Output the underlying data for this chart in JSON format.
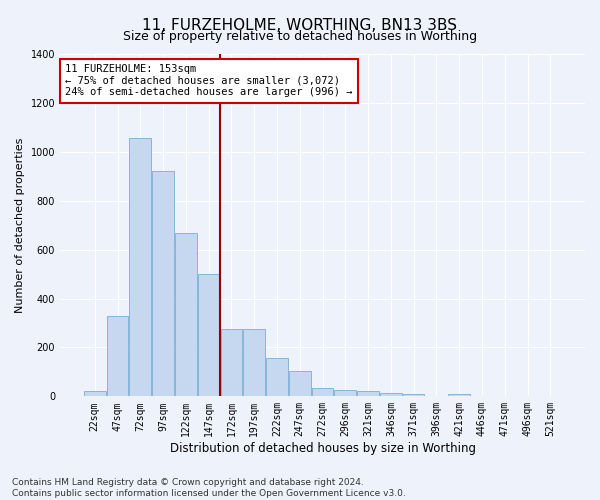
{
  "title": "11, FURZEHOLME, WORTHING, BN13 3BS",
  "subtitle": "Size of property relative to detached houses in Worthing",
  "xlabel": "Distribution of detached houses by size in Worthing",
  "ylabel": "Number of detached properties",
  "categories": [
    "22sqm",
    "47sqm",
    "72sqm",
    "97sqm",
    "122sqm",
    "147sqm",
    "172sqm",
    "197sqm",
    "222sqm",
    "247sqm",
    "272sqm",
    "296sqm",
    "321sqm",
    "346sqm",
    "371sqm",
    "396sqm",
    "421sqm",
    "446sqm",
    "471sqm",
    "496sqm",
    "521sqm"
  ],
  "values": [
    20,
    330,
    1055,
    920,
    670,
    500,
    275,
    275,
    155,
    105,
    35,
    25,
    22,
    15,
    10,
    0,
    10,
    0,
    0,
    0,
    0
  ],
  "bar_color": "#c5d8f0",
  "bar_edge_color": "#7aafd4",
  "vline_x": 5.5,
  "vline_color": "#990000",
  "annotation_line1": "11 FURZEHOLME: 153sqm",
  "annotation_line2": "← 75% of detached houses are smaller (3,072)",
  "annotation_line3": "24% of semi-detached houses are larger (996) →",
  "annotation_box_color": "#ffffff",
  "annotation_box_edge": "#cc0000",
  "ylim": [
    0,
    1400
  ],
  "yticks": [
    0,
    200,
    400,
    600,
    800,
    1000,
    1200,
    1400
  ],
  "bg_color": "#eef2fb",
  "grid_color": "#ffffff",
  "footer": "Contains HM Land Registry data © Crown copyright and database right 2024.\nContains public sector information licensed under the Open Government Licence v3.0.",
  "title_fontsize": 11,
  "subtitle_fontsize": 9,
  "xlabel_fontsize": 8.5,
  "ylabel_fontsize": 8,
  "tick_fontsize": 7,
  "annotation_fontsize": 7.5,
  "footer_fontsize": 6.5
}
